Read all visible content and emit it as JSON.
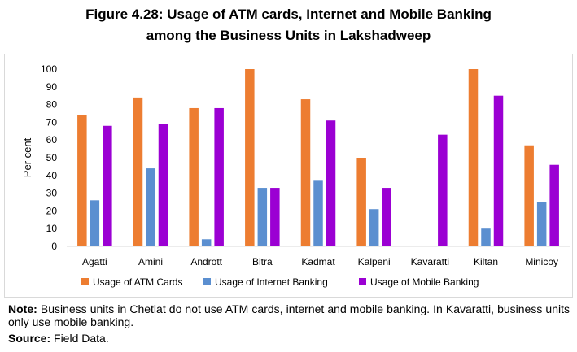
{
  "figure": {
    "title_line1": "Figure 4.28: Usage of ATM cards, Internet and Mobile Banking",
    "title_line2": "among the Business Units in Lakshadweep"
  },
  "chart_data": {
    "type": "bar",
    "title": "Figure 4.28: Usage of ATM cards, Internet and Mobile Banking among the Business Units in Lakshadweep",
    "xlabel": "",
    "ylabel": "Per cent",
    "ylim": [
      0,
      100
    ],
    "yticks": [
      0,
      10,
      20,
      30,
      40,
      50,
      60,
      70,
      80,
      90,
      100
    ],
    "grid": false,
    "legend_position": "bottom",
    "categories": [
      "Agatti",
      "Amini",
      "Andrott",
      "Bitra",
      "Kadmat",
      "Kalpeni",
      "Kavaratti",
      "Kiltan",
      "Minicoy"
    ],
    "series": [
      {
        "name": "Usage of ATM Cards",
        "color": "#ed7d31",
        "values": [
          74,
          84,
          78,
          100,
          83,
          50,
          0,
          100,
          57
        ]
      },
      {
        "name": "Usage of Internet Banking",
        "color": "#5b8fd0",
        "values": [
          26,
          44,
          4,
          33,
          37,
          21,
          0,
          10,
          25
        ]
      },
      {
        "name": "Usage of Mobile Banking",
        "color": "#9b00d3",
        "values": [
          68,
          69,
          78,
          33,
          71,
          33,
          63,
          85,
          46
        ]
      }
    ]
  },
  "note": {
    "label": "Note:",
    "text": " Business units in Chetlat do not use ATM cards, internet and mobile banking. In Kavaratti, business units only use mobile banking."
  },
  "source": {
    "label": "Source:",
    "text": " Field Data."
  }
}
